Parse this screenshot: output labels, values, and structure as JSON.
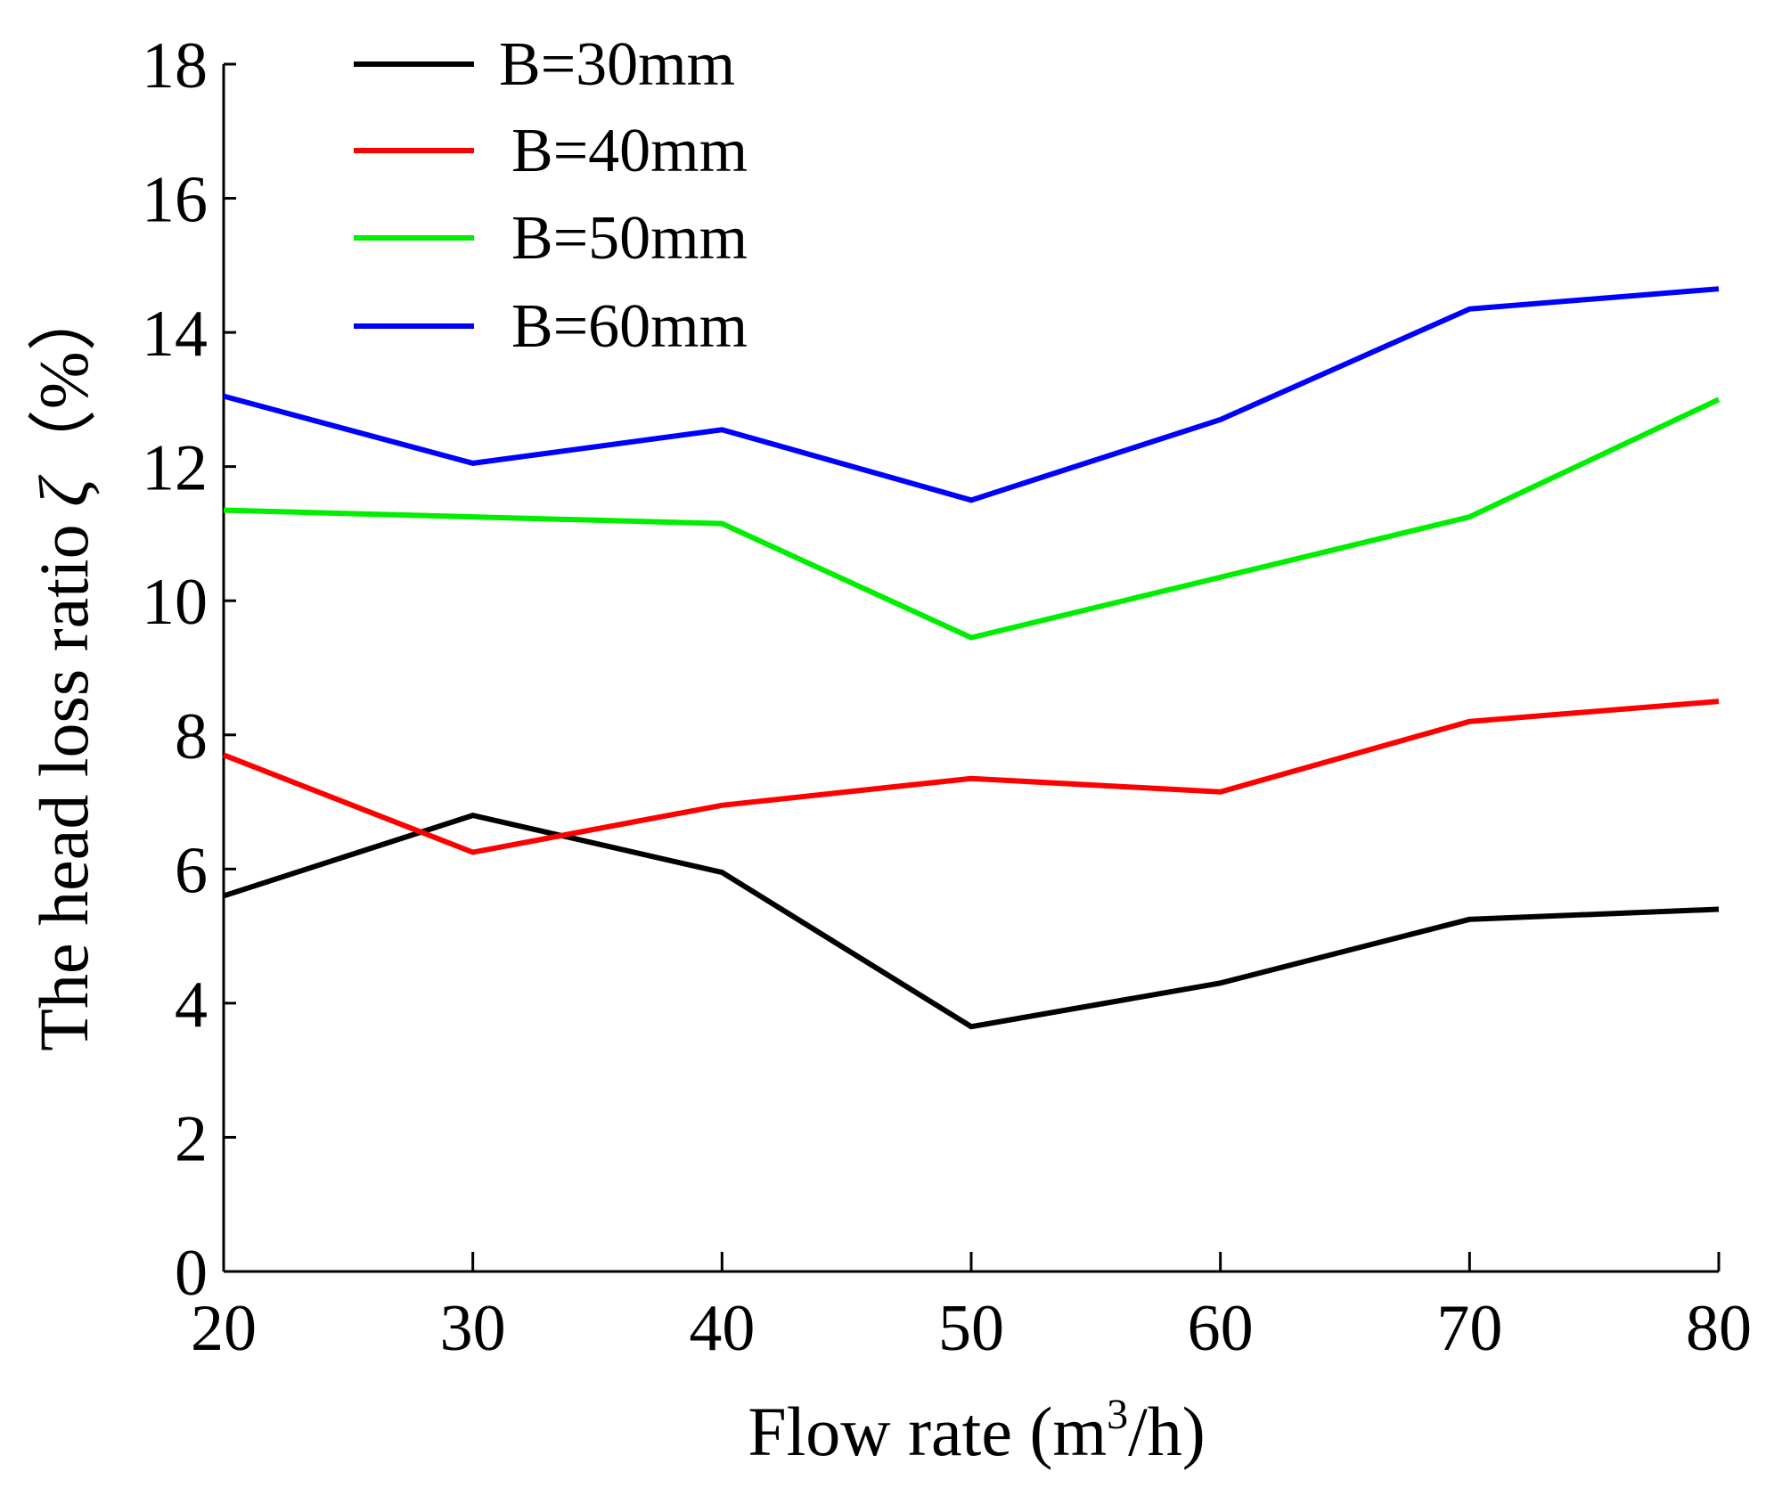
{
  "chart_data": {
    "type": "line",
    "xlabel_main": "Flow rate (m",
    "xlabel_sup": "3",
    "xlabel_end": "/h)",
    "ylabel_main": "The head loss ratio ",
    "ylabel_symbol": "ζ",
    "ylabel_unit": "（%）",
    "x": [
      20,
      30,
      40,
      50,
      60,
      70,
      80
    ],
    "xlim": [
      20,
      80
    ],
    "ylim": [
      0,
      18
    ],
    "xticks": [
      "20",
      "30",
      "40",
      "50",
      "60",
      "70",
      "80"
    ],
    "yticks": [
      "0",
      "2",
      "4",
      "6",
      "8",
      "10",
      "12",
      "14",
      "16",
      "18"
    ],
    "grid": false,
    "legend_position": "top-left",
    "series": [
      {
        "name": "B=30mm",
        "color": "#000000",
        "values": [
          5.6,
          6.8,
          5.95,
          3.65,
          4.3,
          5.25,
          5.4
        ]
      },
      {
        "name": "B=40mm",
        "color": "#ff0000",
        "values": [
          7.7,
          6.25,
          6.95,
          7.35,
          7.15,
          8.2,
          8.5
        ]
      },
      {
        "name": "B=50mm",
        "color": "#00ee00",
        "values": [
          11.35,
          11.25,
          11.15,
          9.45,
          10.35,
          11.25,
          13.0
        ]
      },
      {
        "name": "B=60mm",
        "color": "#0000ff",
        "values": [
          13.05,
          12.05,
          12.55,
          11.5,
          12.7,
          14.35,
          14.65
        ]
      }
    ]
  }
}
